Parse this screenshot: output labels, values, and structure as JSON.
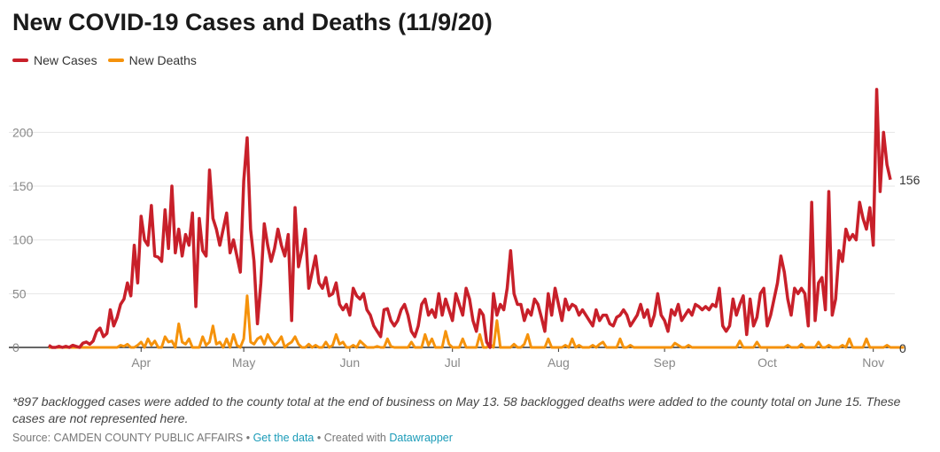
{
  "chart_data": {
    "type": "line",
    "title": "New COVID-19 Cases and Deaths (11/9/20)",
    "legend_position": "top-left",
    "grid": "horizontal",
    "x_tick_labels": [
      "Apr",
      "May",
      "Jun",
      "Jul",
      "Aug",
      "Sep",
      "Oct",
      "Nov"
    ],
    "y_ticks": [
      0,
      50,
      100,
      150,
      200
    ],
    "ylim": [
      0,
      250
    ],
    "x_start": "2020-03-05",
    "end_labels": {
      "cases": "156",
      "deaths": "0"
    },
    "series": [
      {
        "name": "New Cases",
        "color": "#c8202a",
        "values": [
          2,
          0,
          0,
          1,
          0,
          1,
          0,
          2,
          1,
          0,
          4,
          5,
          3,
          6,
          15,
          18,
          10,
          13,
          35,
          20,
          28,
          40,
          45,
          60,
          48,
          95,
          60,
          122,
          100,
          95,
          132,
          85,
          84,
          80,
          128,
          92,
          150,
          88,
          110,
          85,
          105,
          95,
          125,
          38,
          120,
          90,
          85,
          165,
          120,
          110,
          95,
          110,
          125,
          88,
          100,
          85,
          70,
          155,
          195,
          110,
          80,
          22,
          60,
          115,
          95,
          80,
          92,
          110,
          95,
          85,
          105,
          25,
          130,
          75,
          90,
          110,
          55,
          70,
          85,
          60,
          55,
          65,
          48,
          50,
          60,
          40,
          35,
          40,
          30,
          55,
          48,
          45,
          50,
          35,
          30,
          20,
          15,
          10,
          35,
          36,
          25,
          20,
          25,
          35,
          40,
          30,
          15,
          10,
          20,
          40,
          45,
          30,
          35,
          28,
          50,
          30,
          45,
          35,
          25,
          50,
          40,
          30,
          55,
          45,
          25,
          15,
          35,
          30,
          5,
          0,
          50,
          30,
          40,
          35,
          55,
          90,
          50,
          40,
          40,
          25,
          35,
          30,
          45,
          40,
          28,
          15,
          50,
          30,
          55,
          40,
          25,
          45,
          35,
          40,
          38,
          30,
          35,
          30,
          25,
          20,
          35,
          25,
          30,
          30,
          22,
          20,
          28,
          30,
          35,
          30,
          20,
          25,
          30,
          40,
          28,
          35,
          20,
          30,
          50,
          30,
          25,
          15,
          35,
          30,
          40,
          25,
          30,
          35,
          30,
          40,
          38,
          35,
          38,
          35,
          40,
          38,
          55,
          20,
          15,
          20,
          45,
          30,
          40,
          48,
          12,
          45,
          20,
          28,
          50,
          55,
          20,
          30,
          45,
          60,
          85,
          70,
          45,
          30,
          55,
          50,
          55,
          50,
          20,
          135,
          25,
          60,
          65,
          35,
          145,
          30,
          45,
          90,
          80,
          110,
          100,
          105,
          100,
          135,
          120,
          110,
          130,
          95,
          240,
          145,
          200,
          170,
          156
        ]
      },
      {
        "name": "New Deaths",
        "color": "#f5920b",
        "values": [
          0,
          0,
          0,
          0,
          0,
          0,
          0,
          0,
          0,
          0,
          0,
          0,
          0,
          0,
          0,
          0,
          0,
          0,
          0,
          0,
          0,
          2,
          1,
          3,
          0,
          0,
          2,
          5,
          0,
          8,
          2,
          6,
          0,
          0,
          10,
          5,
          6,
          0,
          22,
          5,
          3,
          8,
          0,
          0,
          0,
          10,
          2,
          5,
          20,
          3,
          5,
          0,
          8,
          0,
          12,
          2,
          0,
          8,
          48,
          5,
          3,
          8,
          10,
          3,
          12,
          6,
          2,
          5,
          10,
          0,
          3,
          5,
          10,
          3,
          0,
          0,
          3,
          0,
          2,
          0,
          0,
          5,
          0,
          2,
          12,
          3,
          5,
          0,
          0,
          2,
          0,
          6,
          3,
          0,
          0,
          0,
          1,
          0,
          0,
          8,
          1,
          0,
          0,
          0,
          0,
          0,
          5,
          0,
          0,
          0,
          12,
          2,
          8,
          0,
          0,
          0,
          15,
          3,
          0,
          0,
          0,
          8,
          0,
          0,
          0,
          0,
          12,
          0,
          0,
          3,
          0,
          25,
          0,
          0,
          0,
          0,
          3,
          0,
          0,
          3,
          12,
          0,
          0,
          0,
          0,
          0,
          8,
          0,
          0,
          0,
          0,
          2,
          0,
          8,
          0,
          2,
          0,
          0,
          0,
          2,
          0,
          3,
          5,
          0,
          0,
          0,
          0,
          8,
          0,
          0,
          2,
          0,
          0,
          0,
          0,
          0,
          0,
          0,
          0,
          0,
          0,
          0,
          0,
          4,
          2,
          0,
          0,
          2,
          0,
          0,
          0,
          0,
          0,
          0,
          0,
          0,
          0,
          0,
          0,
          0,
          0,
          0,
          6,
          0,
          0,
          0,
          0,
          5,
          0,
          0,
          0,
          0,
          0,
          0,
          0,
          0,
          2,
          0,
          0,
          0,
          3,
          0,
          0,
          0,
          0,
          5,
          0,
          0,
          2,
          0,
          0,
          0,
          2,
          0,
          8,
          0,
          0,
          0,
          0,
          8,
          0,
          0,
          0,
          0,
          0,
          2,
          0,
          0,
          0,
          0,
          0
        ]
      }
    ]
  },
  "note": "*897 backlogged cases were added to the county total at the end of business on May 13. 58 backlogged deaths were added to the county total on June 15. These cases are not represented here.",
  "footer": {
    "source": "Source: CAMDEN COUNTY PUBLIC AFFAIRS • ",
    "get_data": "Get the data",
    "created_with": " • Created with ",
    "tool": "Datawrapper"
  }
}
